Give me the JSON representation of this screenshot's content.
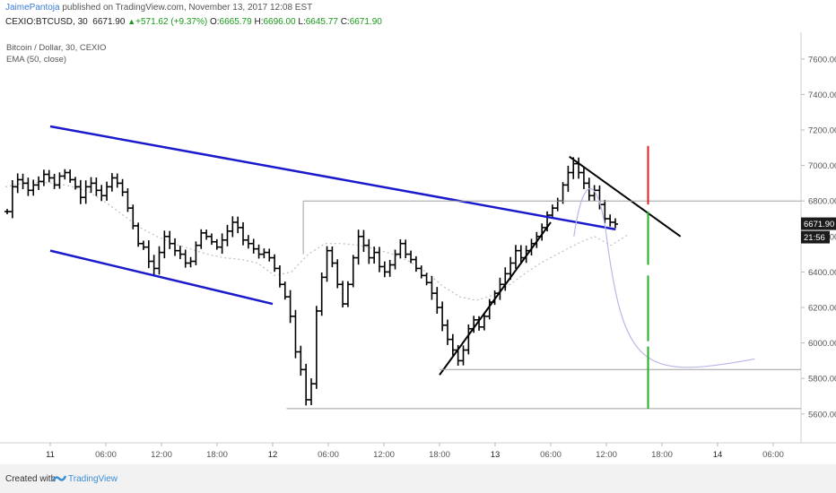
{
  "header": {
    "author": "JaimePantoja",
    "published_text": " published on TradingView.com, November 13, 2017 12:08 EST",
    "symbol": "CEXIO:BTCUSD, 30",
    "last": "6671.90",
    "change": "+571.62 (+9.37%)",
    "o_label": "O:",
    "o_value": "6665.79",
    "h_label": "H:",
    "h_value": "6696.00",
    "l_label": "L:",
    "l_value": "6645.77",
    "c_label": "C:",
    "c_value": "6671.90"
  },
  "legend": {
    "title": "Bitcoin / Dollar, 30, CEXIO",
    "indicator": "EMA (50, close)"
  },
  "footer": {
    "created_with": "Created with",
    "brand": "TradingView"
  },
  "colors": {
    "channel": "#1a1acc",
    "trend": "#000000",
    "ema": "#c9b8c4",
    "projection": "#b8b8e8",
    "red": "#e02020",
    "green": "#20b020",
    "level": "#a0a0a0",
    "price_label_bg": "#1b1b1b"
  },
  "chart_data": {
    "type": "bar",
    "title": "Bitcoin / Dollar, 30, CEXIO",
    "ylim": [
      5450,
      7720
    ],
    "y_ticks": [
      5600,
      5800,
      6000,
      6200,
      6400,
      6600,
      6800,
      7000,
      7200,
      7400,
      7600
    ],
    "x_ticks": [
      "11",
      "06:00",
      "12:00",
      "18:00",
      "12",
      "06:00",
      "12:00",
      "18:00",
      "13",
      "06:00",
      "12:00",
      "18:00",
      "14",
      "06:00"
    ],
    "last_price_label": "6671.90",
    "countdown_label": "21:56",
    "grid": false,
    "ohlc_close": [
      6740,
      6880,
      6920,
      6900,
      6860,
      6890,
      6910,
      6950,
      6930,
      6890,
      6940,
      6960,
      6920,
      6880,
      6820,
      6880,
      6900,
      6860,
      6830,
      6880,
      6930,
      6900,
      6850,
      6760,
      6660,
      6560,
      6540,
      6460,
      6420,
      6510,
      6600,
      6560,
      6520,
      6500,
      6450,
      6460,
      6550,
      6620,
      6600,
      6570,
      6540,
      6580,
      6630,
      6680,
      6650,
      6580,
      6560,
      6530,
      6500,
      6510,
      6480,
      6420,
      6330,
      6260,
      6150,
      5950,
      5850,
      5680,
      5770,
      6180,
      6370,
      6520,
      6450,
      6330,
      6220,
      6330,
      6480,
      6600,
      6550,
      6480,
      6510,
      6430,
      6400,
      6440,
      6500,
      6560,
      6500,
      6470,
      6420,
      6380,
      6340,
      6280,
      6200,
      6100,
      6020,
      5960,
      5900,
      5960,
      6080,
      6130,
      6090,
      6150,
      6230,
      6280,
      6330,
      6390,
      6450,
      6520,
      6480,
      6520,
      6560,
      6600,
      6650,
      6720,
      6760,
      6800,
      6890,
      6960,
      7010,
      6960,
      6900,
      6830,
      6860,
      6780,
      6700,
      6680,
      6670
    ],
    "ema_50_approx": [
      6880,
      6900,
      6905,
      6900,
      6880,
      6850,
      6790,
      6720,
      6650,
      6600,
      6560,
      6530,
      6500,
      6480,
      6470,
      6450,
      6380,
      6400,
      6500,
      6560,
      6560,
      6550,
      6530,
      6500,
      6460,
      6400,
      6320,
      6260,
      6240,
      6270,
      6330,
      6400,
      6460,
      6510,
      6560,
      6600,
      6550,
      6610
    ],
    "annotations": {
      "channel_upper": [
        [
          "11 00:00",
          7220
        ],
        [
          "13 13:00",
          6640
        ]
      ],
      "channel_lower": [
        [
          "11 00:00",
          6520
        ],
        [
          "12 00:00",
          6220
        ]
      ],
      "trend_up": [
        [
          "12 18:00",
          5820
        ],
        [
          "13 06:00",
          6680
        ]
      ],
      "trend_down": [
        [
          "13 08:00",
          7050
        ],
        [
          "13 20:00",
          6600
        ]
      ],
      "h_levels": [
        6800,
        5850,
        5630
      ],
      "projection_low": 5790
    }
  }
}
